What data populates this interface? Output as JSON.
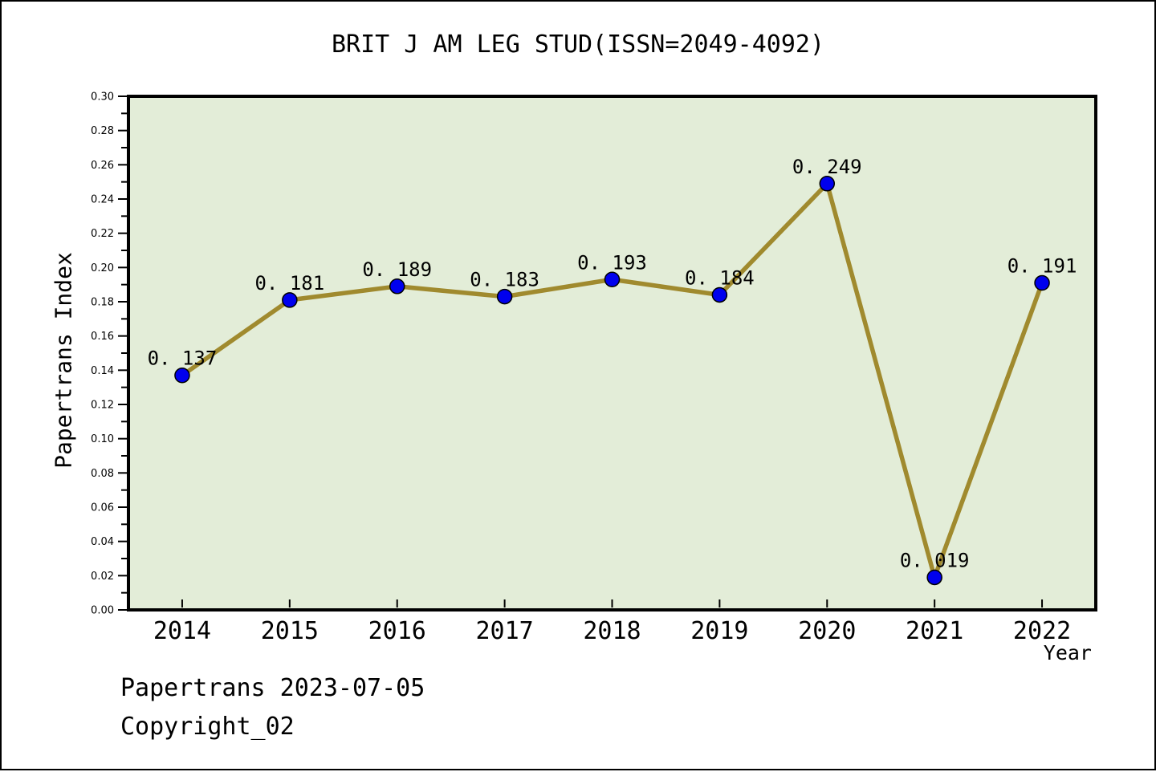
{
  "chart": {
    "title": "BRIT J AM LEG STUD(ISSN=2049-4092)",
    "ylabel": "Papertrans Index",
    "xlabel": "Year"
  },
  "footer": {
    "line1": "Papertrans 2023-07-05",
    "line2": "Copyright_02"
  },
  "chart_data": {
    "type": "line",
    "title": "BRIT J AM LEG STUD(ISSN=2049-4092)",
    "xlabel": "Year",
    "ylabel": "Papertrans Index",
    "x": [
      2014,
      2015,
      2016,
      2017,
      2018,
      2019,
      2020,
      2021,
      2022
    ],
    "values": [
      0.137,
      0.181,
      0.189,
      0.183,
      0.193,
      0.184,
      0.249,
      0.019,
      0.191
    ],
    "point_labels": [
      "0.137",
      "0.181",
      "0.189",
      "0.183",
      "0.193",
      "0.184",
      "0.249",
      "0.019",
      "0.191"
    ],
    "ylim": [
      0.0,
      0.3
    ],
    "xlim": [
      2013.5,
      2022.5
    ],
    "y_major_tick_step": 0.02,
    "y_minor_tick_step": 0.01,
    "grid": false,
    "legend": "none",
    "colors": {
      "plot_bg": "#E3EDD8",
      "line": "#A08A2E",
      "marker": "#0000EE",
      "marker_edge": "#000000",
      "axis": "#000000",
      "text": "#000000"
    }
  }
}
